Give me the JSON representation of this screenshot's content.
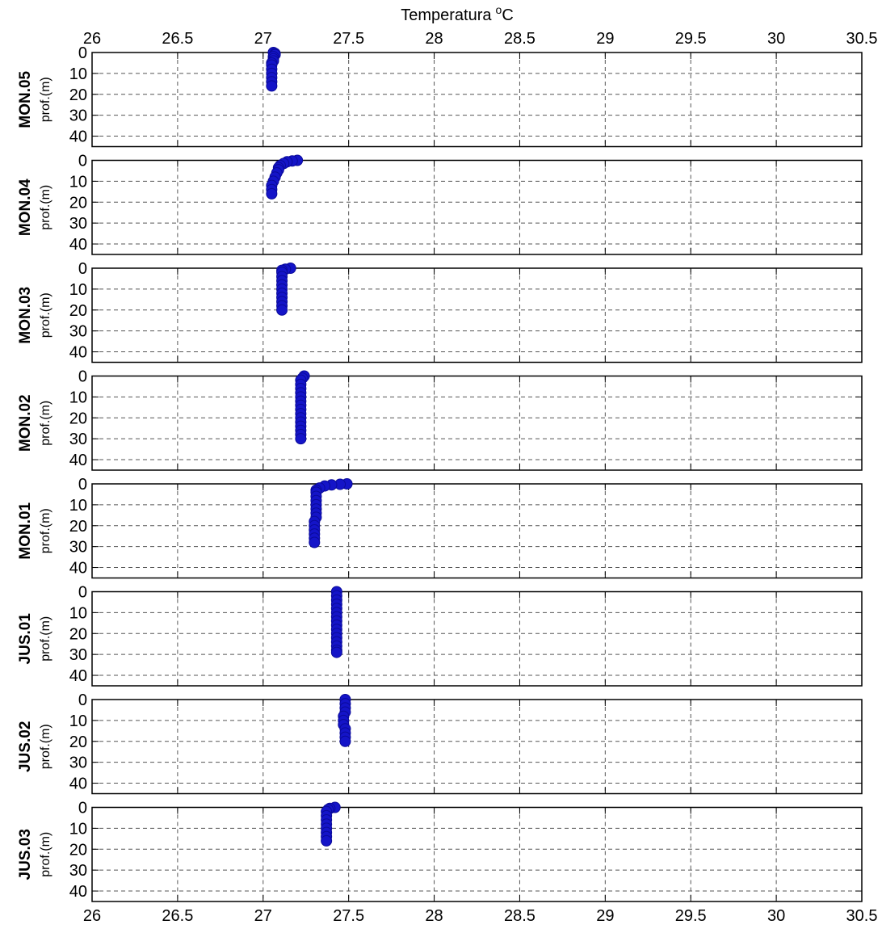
{
  "figure": {
    "xlabel": "Temperatura",
    "xlabel_unit_sup": "o",
    "xlabel_unit": "C"
  },
  "chart_data": {
    "type": "scatter",
    "xlim": [
      26,
      30.5
    ],
    "x_ticks": [
      "26",
      "26.5",
      "27",
      "27.5",
      "28",
      "28.5",
      "29",
      "29.5",
      "30",
      "30.5"
    ],
    "ylim": [
      0,
      45
    ],
    "y_reversed": true,
    "y_ticks": [
      "0",
      "10",
      "20",
      "30",
      "40"
    ],
    "ylabel": "prof.(m)",
    "grid": true,
    "marker_color": "#1414c8",
    "panels": [
      {
        "station": "MON.05",
        "points": [
          [
            27.06,
            0
          ],
          [
            27.07,
            0.5
          ],
          [
            27.07,
            1
          ],
          [
            27.06,
            2
          ],
          [
            27.06,
            3
          ],
          [
            27.06,
            4
          ],
          [
            27.05,
            5
          ],
          [
            27.05,
            6
          ],
          [
            27.05,
            8
          ],
          [
            27.05,
            10
          ],
          [
            27.05,
            12
          ],
          [
            27.05,
            14
          ],
          [
            27.05,
            16
          ]
        ]
      },
      {
        "station": "MON.04",
        "points": [
          [
            27.2,
            0
          ],
          [
            27.17,
            0.3
          ],
          [
            27.14,
            0.7
          ],
          [
            27.12,
            1.5
          ],
          [
            27.1,
            2.5
          ],
          [
            27.09,
            3.5
          ],
          [
            27.09,
            4.5
          ],
          [
            27.08,
            6
          ],
          [
            27.07,
            8
          ],
          [
            27.06,
            10
          ],
          [
            27.05,
            12
          ],
          [
            27.05,
            14
          ],
          [
            27.05,
            16
          ]
        ]
      },
      {
        "station": "MON.03",
        "points": [
          [
            27.16,
            0
          ],
          [
            27.13,
            0.5
          ],
          [
            27.11,
            1
          ],
          [
            27.11,
            2
          ],
          [
            27.11,
            4
          ],
          [
            27.11,
            6
          ],
          [
            27.11,
            8
          ],
          [
            27.11,
            10
          ],
          [
            27.11,
            12
          ],
          [
            27.11,
            14
          ],
          [
            27.11,
            16
          ],
          [
            27.11,
            18
          ],
          [
            27.11,
            20
          ]
        ]
      },
      {
        "station": "MON.02",
        "points": [
          [
            27.24,
            0
          ],
          [
            27.23,
            1
          ],
          [
            27.22,
            2
          ],
          [
            27.22,
            4
          ],
          [
            27.22,
            6
          ],
          [
            27.22,
            8
          ],
          [
            27.22,
            10
          ],
          [
            27.22,
            12
          ],
          [
            27.22,
            14
          ],
          [
            27.22,
            16
          ],
          [
            27.22,
            18
          ],
          [
            27.22,
            20
          ],
          [
            27.22,
            22
          ],
          [
            27.22,
            24
          ],
          [
            27.22,
            26
          ],
          [
            27.22,
            28
          ],
          [
            27.22,
            30
          ]
        ]
      },
      {
        "station": "MON.01",
        "points": [
          [
            27.49,
            0
          ],
          [
            27.45,
            0.2
          ],
          [
            27.4,
            0.5
          ],
          [
            27.36,
            1
          ],
          [
            27.33,
            2
          ],
          [
            27.31,
            3
          ],
          [
            27.31,
            4
          ],
          [
            27.31,
            6
          ],
          [
            27.31,
            8
          ],
          [
            27.31,
            10
          ],
          [
            27.31,
            12
          ],
          [
            27.31,
            14
          ],
          [
            27.31,
            16
          ],
          [
            27.3,
            18
          ],
          [
            27.3,
            20
          ],
          [
            27.3,
            22
          ],
          [
            27.3,
            24
          ],
          [
            27.3,
            26
          ],
          [
            27.3,
            28
          ]
        ]
      },
      {
        "station": "JUS.01",
        "points": [
          [
            27.43,
            0
          ],
          [
            27.43,
            2
          ],
          [
            27.43,
            4
          ],
          [
            27.43,
            6
          ],
          [
            27.43,
            8
          ],
          [
            27.43,
            10
          ],
          [
            27.43,
            12
          ],
          [
            27.43,
            14
          ],
          [
            27.43,
            16
          ],
          [
            27.43,
            18
          ],
          [
            27.43,
            20
          ],
          [
            27.43,
            22
          ],
          [
            27.43,
            24
          ],
          [
            27.43,
            26
          ],
          [
            27.43,
            28
          ],
          [
            27.43,
            29
          ]
        ]
      },
      {
        "station": "JUS.02",
        "points": [
          [
            27.48,
            0
          ],
          [
            27.48,
            2
          ],
          [
            27.48,
            4
          ],
          [
            27.48,
            6
          ],
          [
            27.47,
            8
          ],
          [
            27.47,
            10
          ],
          [
            27.47,
            12
          ],
          [
            27.48,
            14
          ],
          [
            27.48,
            16
          ],
          [
            27.48,
            18
          ],
          [
            27.48,
            20
          ]
        ]
      },
      {
        "station": "JUS.03",
        "points": [
          [
            27.42,
            0
          ],
          [
            27.39,
            0.5
          ],
          [
            27.38,
            1
          ],
          [
            27.37,
            2
          ],
          [
            27.37,
            4
          ],
          [
            27.37,
            6
          ],
          [
            27.37,
            8
          ],
          [
            27.37,
            10
          ],
          [
            27.37,
            12
          ],
          [
            27.37,
            14
          ],
          [
            27.37,
            16
          ]
        ]
      }
    ]
  }
}
